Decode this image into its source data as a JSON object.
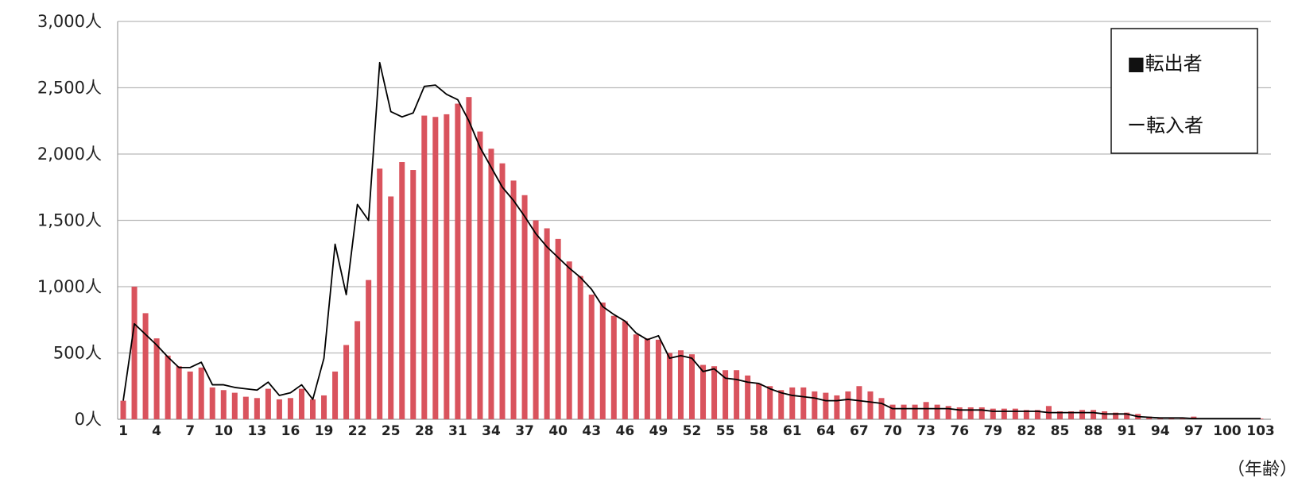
{
  "chart_data": {
    "type": "bar",
    "title": "",
    "xlabel": "（年齢）",
    "ylabel": "",
    "x": [
      1,
      2,
      3,
      4,
      5,
      6,
      7,
      8,
      9,
      10,
      11,
      12,
      13,
      14,
      15,
      16,
      17,
      18,
      19,
      20,
      21,
      22,
      23,
      24,
      25,
      26,
      27,
      28,
      29,
      30,
      31,
      32,
      33,
      34,
      35,
      36,
      37,
      38,
      39,
      40,
      41,
      42,
      43,
      44,
      45,
      46,
      47,
      48,
      49,
      50,
      51,
      52,
      53,
      54,
      55,
      56,
      57,
      58,
      59,
      60,
      61,
      62,
      63,
      64,
      65,
      66,
      67,
      68,
      69,
      70,
      71,
      72,
      73,
      74,
      75,
      76,
      77,
      78,
      79,
      80,
      81,
      82,
      83,
      84,
      85,
      86,
      87,
      88,
      89,
      90,
      91,
      92,
      93,
      94,
      95,
      96,
      97,
      98,
      99,
      100,
      101,
      102,
      103
    ],
    "x_tick_labels": [
      "1",
      "4",
      "7",
      "10",
      "13",
      "16",
      "19",
      "22",
      "25",
      "28",
      "31",
      "34",
      "37",
      "40",
      "43",
      "46",
      "49",
      "52",
      "55",
      "58",
      "61",
      "64",
      "67",
      "70",
      "73",
      "76",
      "79",
      "82",
      "85",
      "88",
      "91",
      "94",
      "97",
      "100",
      "103"
    ],
    "y_tick_labels": [
      "0人",
      "500人",
      "1,000人",
      "1,500人",
      "2,000人",
      "2,500人",
      "3,000人"
    ],
    "ylim": [
      0,
      3000
    ],
    "grid": true,
    "legend_position": "top-right",
    "series": [
      {
        "name": "転出者",
        "legend_label": "■転出者",
        "kind": "bar",
        "color": "#d9535d",
        "values": [
          140,
          1000,
          800,
          610,
          480,
          400,
          360,
          390,
          240,
          220,
          200,
          170,
          160,
          230,
          150,
          160,
          230,
          150,
          180,
          360,
          560,
          740,
          1050,
          1890,
          1680,
          1940,
          1880,
          2290,
          2280,
          2300,
          2380,
          2430,
          2170,
          2040,
          1930,
          1800,
          1690,
          1500,
          1440,
          1360,
          1190,
          1080,
          940,
          880,
          780,
          740,
          640,
          610,
          600,
          500,
          520,
          490,
          410,
          400,
          370,
          370,
          330,
          270,
          250,
          220,
          240,
          240,
          210,
          200,
          180,
          210,
          250,
          210,
          160,
          110,
          110,
          110,
          130,
          110,
          100,
          90,
          90,
          90,
          80,
          80,
          80,
          70,
          70,
          100,
          60,
          60,
          70,
          70,
          60,
          50,
          50,
          40,
          20,
          10,
          10,
          10,
          20,
          5,
          5,
          5,
          5,
          5,
          5
        ]
      },
      {
        "name": "転入者",
        "legend_label": "ー転入者",
        "kind": "line",
        "color": "#000000",
        "values": [
          140,
          720,
          640,
          560,
          470,
          390,
          390,
          430,
          260,
          260,
          240,
          230,
          220,
          280,
          180,
          200,
          260,
          150,
          460,
          1320,
          940,
          1620,
          1500,
          2690,
          2320,
          2280,
          2310,
          2510,
          2520,
          2450,
          2410,
          2250,
          2050,
          1900,
          1750,
          1650,
          1530,
          1400,
          1300,
          1220,
          1140,
          1070,
          980,
          850,
          790,
          740,
          650,
          600,
          630,
          460,
          480,
          460,
          360,
          380,
          310,
          300,
          280,
          270,
          230,
          200,
          180,
          170,
          160,
          140,
          140,
          150,
          140,
          130,
          120,
          80,
          80,
          80,
          80,
          80,
          80,
          70,
          70,
          70,
          60,
          60,
          60,
          60,
          60,
          50,
          50,
          50,
          50,
          50,
          40,
          40,
          40,
          20,
          15,
          10,
          10,
          10,
          5,
          5,
          5,
          5,
          5,
          5,
          5
        ]
      }
    ]
  }
}
